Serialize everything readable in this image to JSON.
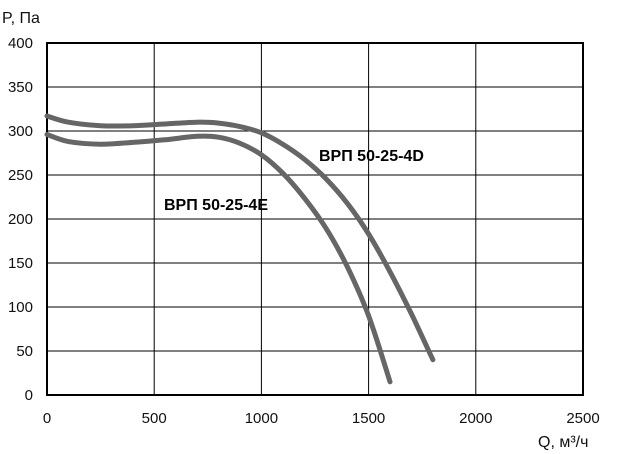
{
  "chart_data": {
    "type": "line",
    "title": "",
    "ylabel": "P, Па",
    "xlabel": "Q, м³/ч",
    "xlim": [
      0,
      2500
    ],
    "ylim": [
      0,
      400
    ],
    "x_ticks": [
      0,
      500,
      1000,
      1500,
      2000,
      2500
    ],
    "y_ticks": [
      0,
      50,
      100,
      150,
      200,
      250,
      300,
      350,
      400
    ],
    "grid": true,
    "line_color": "#666666",
    "series": [
      {
        "name": "ВРП 50-25-4D",
        "points": [
          [
            0,
            317
          ],
          [
            100,
            310
          ],
          [
            250,
            306
          ],
          [
            400,
            306
          ],
          [
            550,
            308
          ],
          [
            700,
            310
          ],
          [
            800,
            309
          ],
          [
            900,
            305
          ],
          [
            1000,
            298
          ],
          [
            1100,
            285
          ],
          [
            1200,
            268
          ],
          [
            1300,
            246
          ],
          [
            1400,
            218
          ],
          [
            1500,
            183
          ],
          [
            1600,
            140
          ],
          [
            1700,
            92
          ],
          [
            1800,
            40
          ]
        ]
      },
      {
        "name": "ВРП 50-25-4E",
        "points": [
          [
            0,
            296
          ],
          [
            100,
            288
          ],
          [
            250,
            285
          ],
          [
            400,
            287
          ],
          [
            550,
            290
          ],
          [
            700,
            294
          ],
          [
            800,
            293
          ],
          [
            900,
            286
          ],
          [
            1000,
            273
          ],
          [
            1100,
            252
          ],
          [
            1200,
            224
          ],
          [
            1300,
            190
          ],
          [
            1400,
            146
          ],
          [
            1500,
            90
          ],
          [
            1600,
            15
          ]
        ]
      }
    ],
    "labels": [
      {
        "series": 0,
        "text": "ВРП 50-25-4D"
      },
      {
        "series": 1,
        "text": "ВРП 50-25-4E"
      }
    ]
  }
}
